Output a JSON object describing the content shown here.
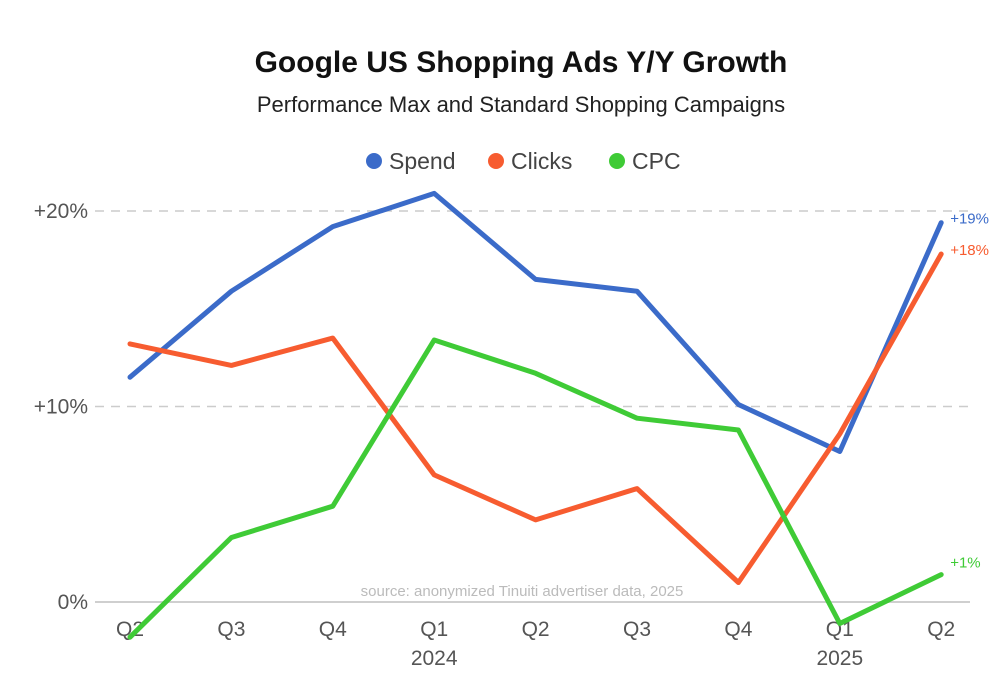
{
  "chart_data": {
    "type": "line",
    "title": "Google US Shopping Ads Y/Y Growth",
    "subtitle": "Performance Max and Standard Shopping Campaigns",
    "source": "source: anonymized Tinuiti advertiser data, 2025",
    "categories": [
      "Q2",
      "Q3",
      "Q4",
      "Q1",
      "Q2",
      "Q3",
      "Q4",
      "Q1",
      "Q2"
    ],
    "year_labels": [
      {
        "index": 3,
        "label": "2024"
      },
      {
        "index": 7,
        "label": "2025"
      }
    ],
    "y_ticks": [
      {
        "value": 0,
        "label": "0%"
      },
      {
        "value": 10,
        "label": "+10%"
      },
      {
        "value": 20,
        "label": "+20%"
      }
    ],
    "ylim": [
      0,
      20
    ],
    "grid": true,
    "legend_position": "top-center",
    "series": [
      {
        "name": "Spend",
        "color": "#3b6bc9",
        "values": [
          11.5,
          15.9,
          19.2,
          20.9,
          16.5,
          15.9,
          10.1,
          7.7,
          19.4
        ],
        "end_label": "+19%"
      },
      {
        "name": "Clicks",
        "color": "#f75c30",
        "values": [
          13.2,
          12.1,
          13.5,
          6.5,
          4.2,
          5.8,
          1.0,
          8.6,
          17.8
        ],
        "end_label": "+18%"
      },
      {
        "name": "CPC",
        "color": "#3fcb36",
        "values": [
          -1.8,
          3.3,
          4.9,
          13.4,
          11.7,
          9.4,
          8.8,
          -1.1,
          1.4
        ],
        "end_label": "+1%"
      }
    ]
  }
}
